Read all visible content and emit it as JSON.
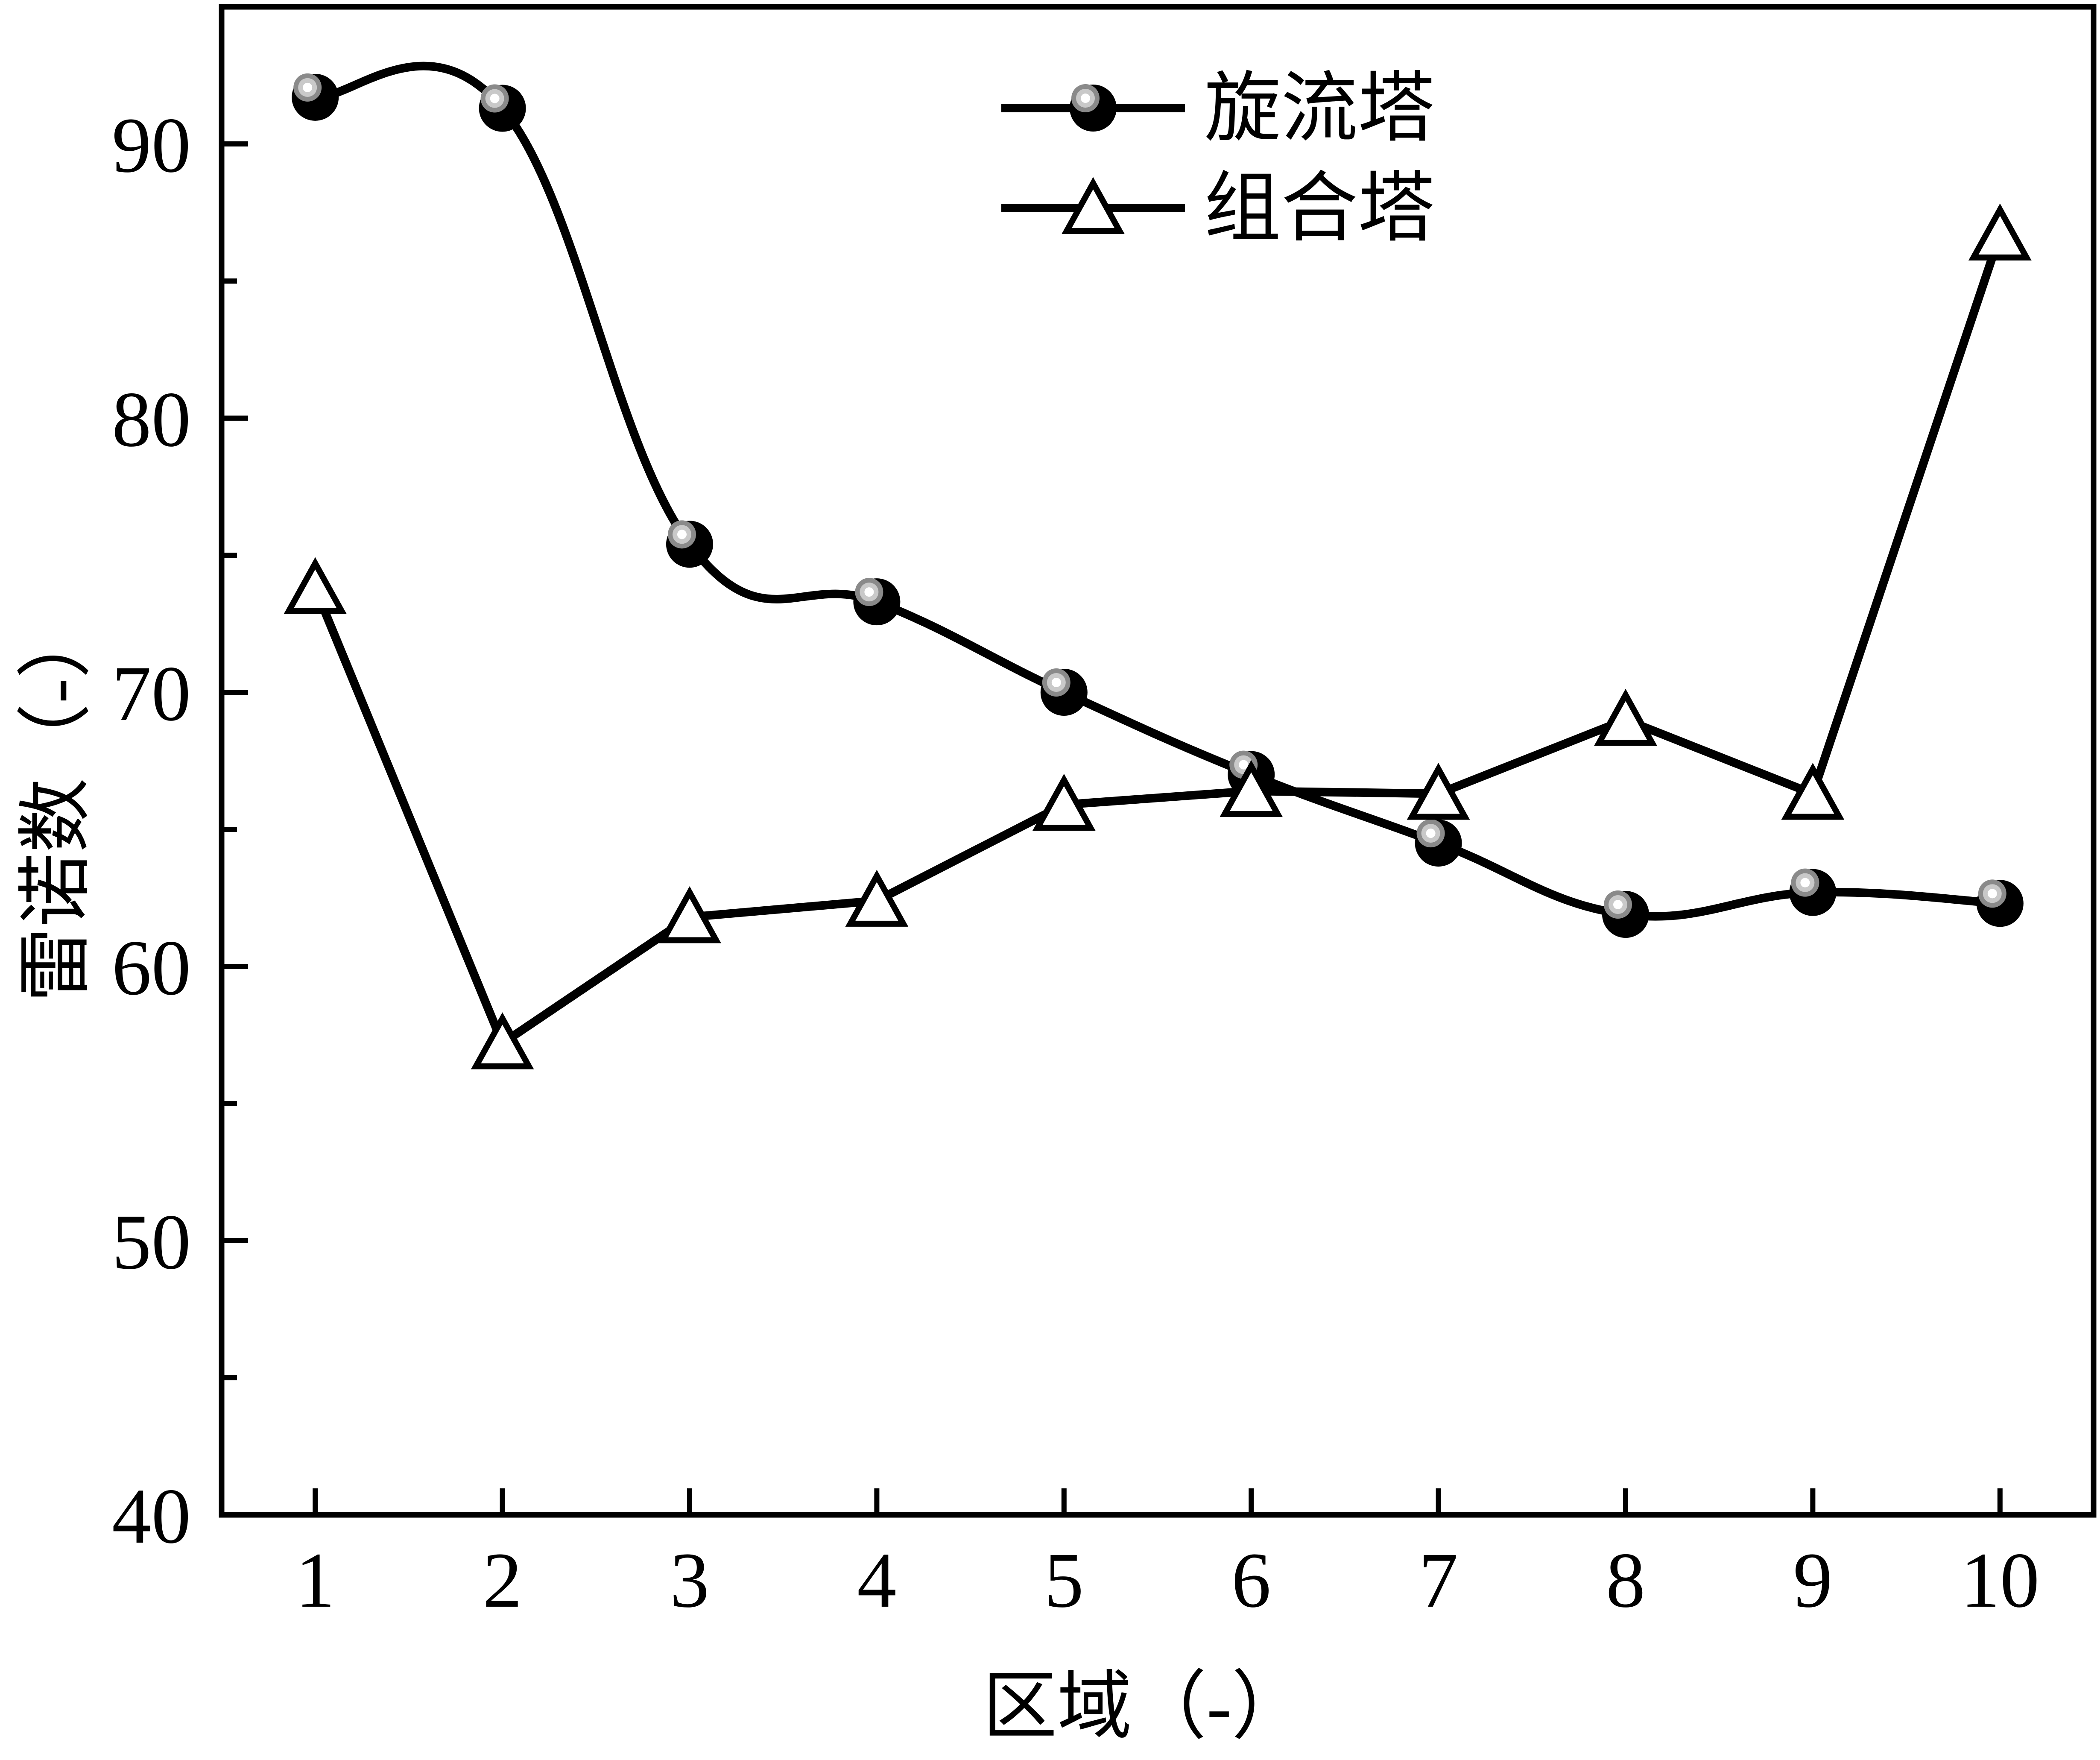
{
  "figure": {
    "background": "#ffffff",
    "ink": "#000000"
  },
  "axes": {
    "xlabel": "区域（-）",
    "ylabel": "雷诺数（-）",
    "xlim": [
      0.5,
      10.5
    ],
    "ylim": [
      40,
      95
    ],
    "x_ticks": [
      "1",
      "2",
      "3",
      "4",
      "5",
      "6",
      "7",
      "8",
      "9",
      "10"
    ],
    "y_major_ticks": [
      "40",
      "50",
      "60",
      "70",
      "80",
      "90"
    ],
    "y_minor_ticks": [
      45,
      55,
      65,
      75,
      85
    ],
    "tick_direction": "in"
  },
  "legend": {
    "items": [
      {
        "label": "旋流塔",
        "marker": "ball"
      },
      {
        "label": "组合塔",
        "marker": "open-triangle"
      }
    ]
  },
  "chart_data": {
    "type": "line",
    "x": [
      1,
      2,
      3,
      4,
      5,
      6,
      7,
      8,
      9,
      10
    ],
    "series": [
      {
        "name": "旋流塔",
        "marker": "filled-ball-circle",
        "line": "smooth",
        "values": [
          91.7,
          91.3,
          75.4,
          73.3,
          70.0,
          67.0,
          64.5,
          61.9,
          62.7,
          62.3
        ]
      },
      {
        "name": "组合塔",
        "marker": "open-triangle",
        "line": "straight",
        "values": [
          73.8,
          57.2,
          61.8,
          62.4,
          65.9,
          66.4,
          66.3,
          69.0,
          66.3,
          86.7
        ]
      }
    ],
    "title": "",
    "xlabel": "区域（-）",
    "ylabel": "雷诺数（-）",
    "grid": false,
    "legend_position": "upper-center-right"
  }
}
